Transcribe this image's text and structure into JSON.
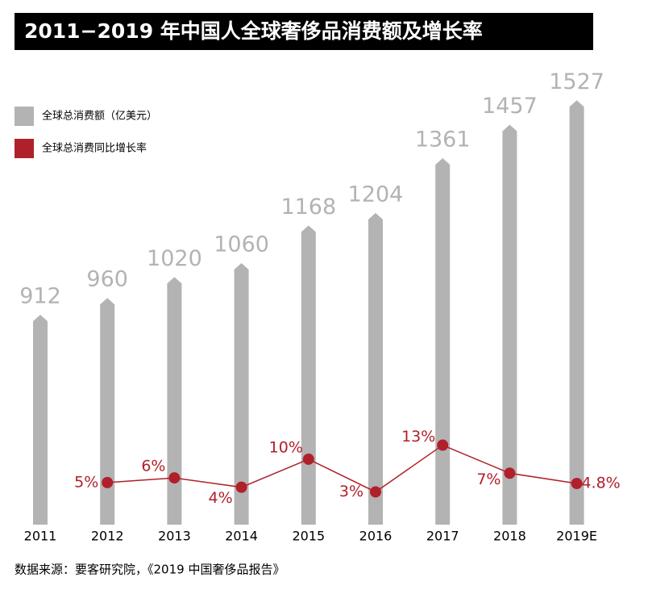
{
  "chart_data": {
    "type": "bar-line",
    "title": "2011−2019 年中国人全球奢侈品消费额及增长率",
    "source": "数据来源：要客研究院，《2019 中国奢侈品报告》",
    "categories": [
      "2011",
      "2012",
      "2013",
      "2014",
      "2015",
      "2016",
      "2017",
      "2018",
      "2019E"
    ],
    "series": [
      {
        "name": "全球总消费额（亿美元）",
        "color": "#b3b3b3",
        "type": "bar",
        "values": [
          912,
          960,
          1020,
          1060,
          1168,
          1204,
          1361,
          1457,
          1527
        ]
      },
      {
        "name": "全球总消费同比增长率",
        "color": "#b0202a",
        "type": "line",
        "axis": "y2",
        "values": [
          null,
          5,
          6,
          4,
          10,
          3,
          13,
          7,
          4.8
        ],
        "value_labels": [
          null,
          "5%",
          "6%",
          "4%",
          "10%",
          "3%",
          "13%",
          "7%",
          "4.8%"
        ]
      }
    ],
    "ylim": [
      310,
      1530
    ],
    "y2lim": [
      -4,
      87
    ]
  }
}
